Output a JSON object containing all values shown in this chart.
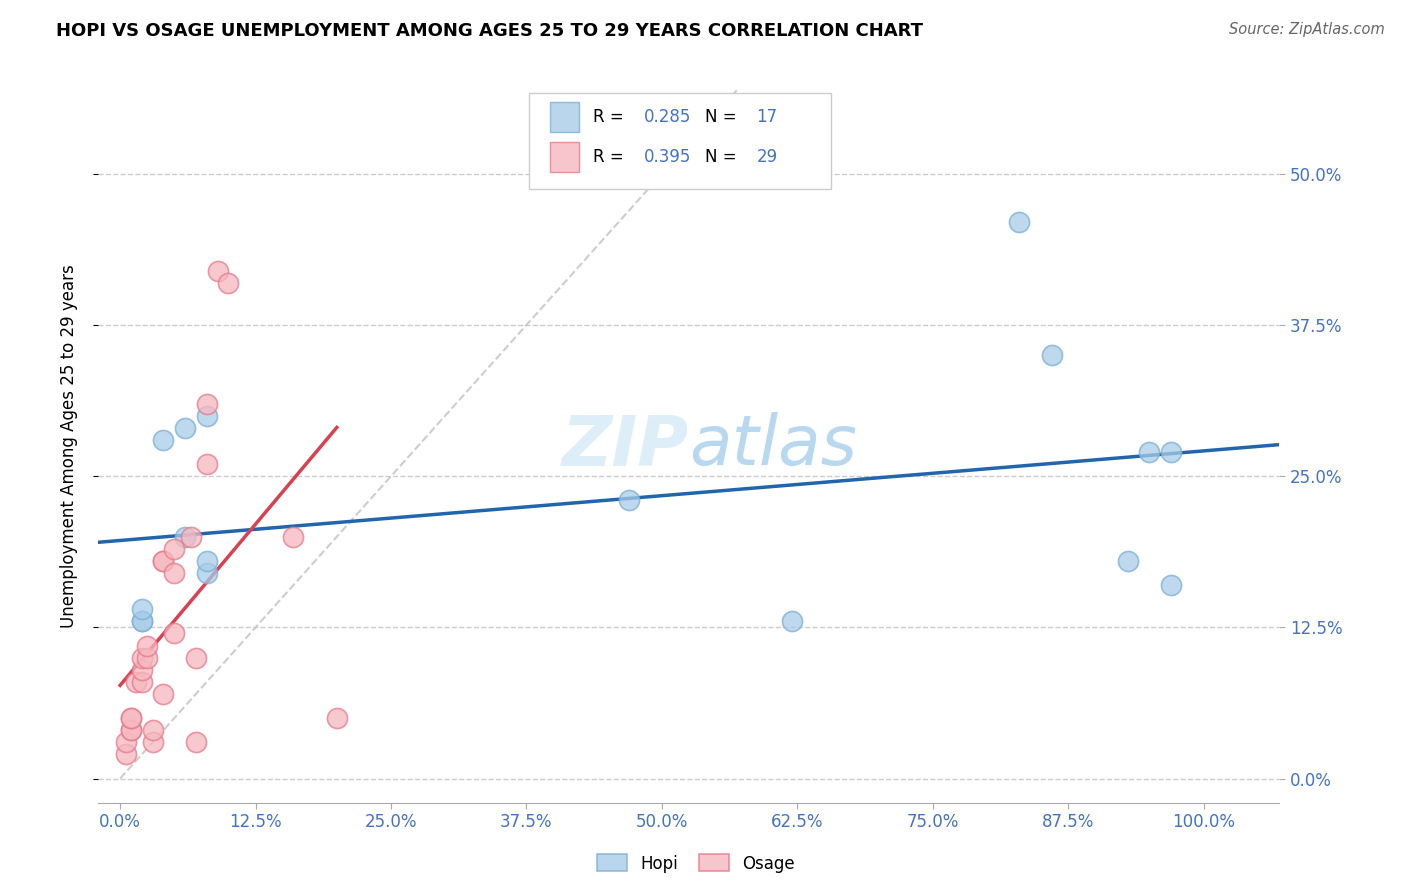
{
  "title": "HOPI VS OSAGE UNEMPLOYMENT AMONG AGES 25 TO 29 YEARS CORRELATION CHART",
  "source": "Source: ZipAtlas.com",
  "ylabel_label": "Unemployment Among Ages 25 to 29 years",
  "hopi_color": "#a8cce8",
  "osage_color": "#f5b8c0",
  "hopi_edge_color": "#7bafd4",
  "osage_edge_color": "#e87888",
  "hopi_line_color": "#2166ac",
  "osage_line_color": "#d94050",
  "diagonal_color": "#c8c8c8",
  "watermark_color": "#ddeef8",
  "legend_hopi_R": "0.285",
  "legend_hopi_N": "17",
  "legend_osage_R": "0.395",
  "legend_osage_N": "29",
  "tick_color": "#4472c4",
  "grid_color": "#cccccc",
  "hopi_x": [
    2,
    2,
    2,
    4,
    6,
    6,
    8,
    8,
    8,
    47,
    62,
    83,
    86,
    93,
    95,
    97,
    97
  ],
  "hopi_y": [
    13,
    13,
    14,
    28,
    20,
    29,
    17,
    30,
    18,
    23,
    13,
    46,
    35,
    18,
    27,
    27,
    16
  ],
  "osage_x": [
    0.5,
    0.5,
    1,
    1,
    1,
    1,
    1.5,
    2,
    2,
    2,
    2.5,
    2.5,
    3,
    3,
    4,
    4,
    4,
    5,
    5,
    5,
    6.5,
    7,
    7,
    8,
    8,
    9,
    10,
    16,
    20
  ],
  "osage_y": [
    2,
    3,
    4,
    4,
    5,
    5,
    8,
    8,
    9,
    10,
    10,
    11,
    3,
    4,
    18,
    18,
    7,
    12,
    17,
    19,
    20,
    3,
    10,
    31,
    26,
    42,
    41,
    20,
    5
  ],
  "xlim": [
    -2,
    107
  ],
  "ylim": [
    -2,
    57
  ],
  "xaxis_major_ticks": [
    0,
    12.5,
    25,
    37.5,
    50,
    62.5,
    75,
    87.5,
    100
  ],
  "yaxis_major_ticks": [
    0,
    12.5,
    25,
    37.5,
    50
  ]
}
